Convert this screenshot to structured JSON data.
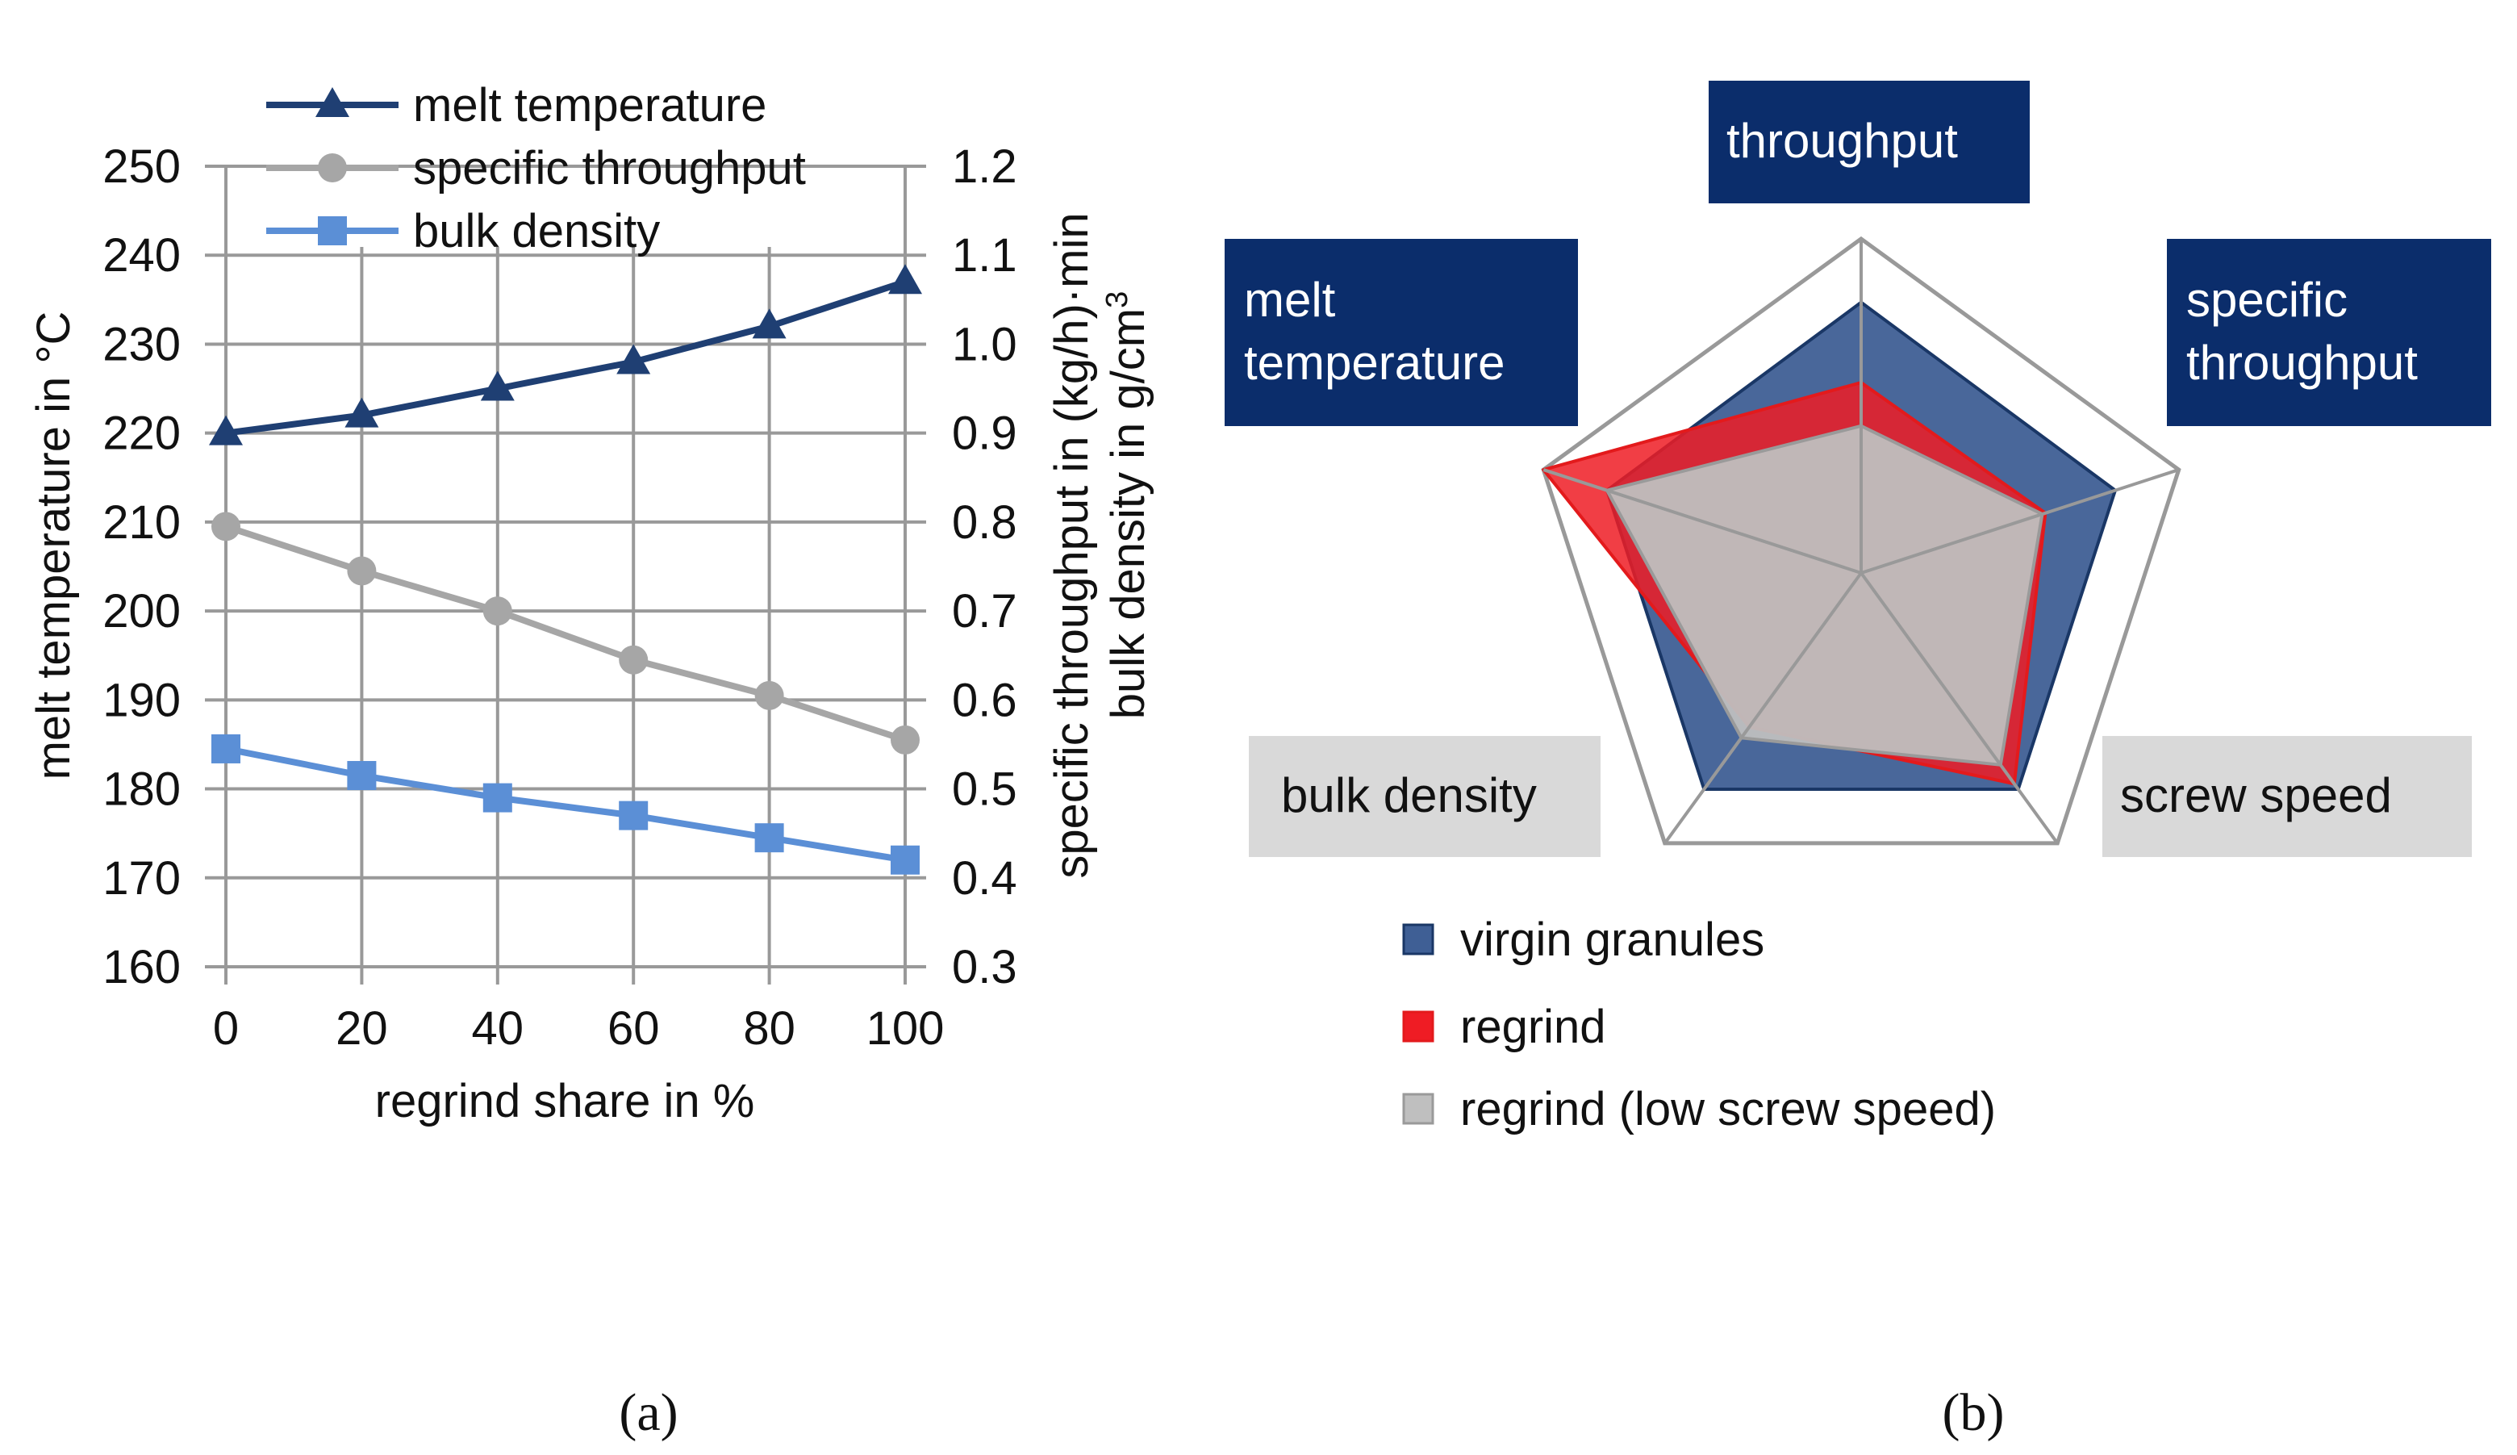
{
  "colors": {
    "melt": "#1f3f73",
    "specific": "#a6a6a6",
    "bulk": "#5b8fd6",
    "grid": "#999999",
    "navy_box": "#0b2d6b",
    "gray_box": "#d9d9d9",
    "virgin_fill": "#3f5f95",
    "regrind_fill": "#ef1c24",
    "low_fill": "#bfbfbf"
  },
  "panel_a": {
    "caption": "(a)",
    "chart_data": {
      "type": "line",
      "x": [
        0,
        20,
        40,
        60,
        80,
        100
      ],
      "xlabel": "regrind share in %",
      "xticks": [
        "0",
        "20",
        "40",
        "60",
        "80",
        "100"
      ],
      "xlim": [
        0,
        100
      ],
      "ylabel_left": "melt temperature in °C",
      "ylim_left": [
        160,
        250
      ],
      "yticks_left": [
        "160",
        "170",
        "180",
        "190",
        "200",
        "210",
        "220",
        "230",
        "240",
        "250"
      ],
      "ylabel_right_1": "specific throughput in (kg/h)·min",
      "ylabel_right_2_prefix": "bulk density in g/cm",
      "ylabel_right_2_sup": "3",
      "ylim_right": [
        0.3,
        1.2
      ],
      "yticks_right": [
        "0.3",
        "0.4",
        "0.5",
        "0.6",
        "0.7",
        "0.8",
        "0.9",
        "1.0",
        "1.1",
        "1.2"
      ],
      "grid": true,
      "legend_position": "top",
      "series": [
        {
          "name": "melt temperature",
          "axis": "left",
          "marker": "triangle",
          "values": [
            220,
            222,
            225,
            228,
            232,
            237
          ]
        },
        {
          "name": "specific throughput",
          "axis": "right",
          "marker": "circle",
          "values": [
            0.795,
            0.745,
            0.7,
            0.645,
            0.605,
            0.555
          ]
        },
        {
          "name": "bulk density",
          "axis": "right",
          "marker": "square",
          "values": [
            0.545,
            0.515,
            0.49,
            0.47,
            0.445,
            0.42
          ]
        }
      ]
    }
  },
  "panel_b": {
    "caption": "(b)",
    "chart_data": {
      "type": "radar",
      "axes": [
        "throughput",
        "specific throughput",
        "screw speed",
        "bulk density",
        "melt temperature"
      ],
      "axis_labels": {
        "throughput": [
          "throughput"
        ],
        "specific_throughput": [
          "specific",
          "throughput"
        ],
        "screw_speed": [
          "screw speed"
        ],
        "bulk_density": [
          "bulk density"
        ],
        "melt_temperature": [
          "melt",
          "temperature"
        ]
      },
      "range": [
        0,
        1
      ],
      "series": [
        {
          "name": "virgin granules",
          "values": [
            0.81,
            0.8,
            0.8,
            0.8,
            0.8
          ]
        },
        {
          "name": "regrind",
          "values": [
            0.57,
            0.58,
            0.78,
            0.57,
            1.0
          ]
        },
        {
          "name": "regrind (low screw speed)",
          "values": [
            0.44,
            0.57,
            0.71,
            0.61,
            0.8
          ]
        }
      ]
    }
  }
}
